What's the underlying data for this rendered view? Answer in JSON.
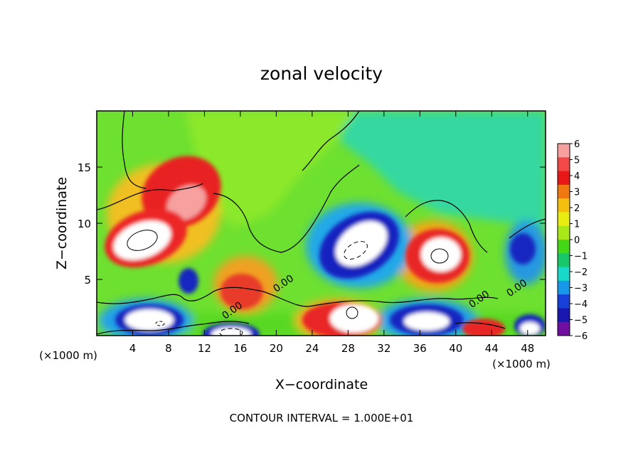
{
  "chart_data": {
    "type": "heatmap",
    "title": "zonal velocity",
    "xlabel": "X−coordinate",
    "ylabel": "Z−coordinate",
    "x_unit_label": "(×1000 m)",
    "y_unit_label": "(×1000 m)",
    "footer": "CONTOUR INTERVAL = 1.000E+01",
    "xlim": [
      0,
      50
    ],
    "ylim": [
      0,
      20
    ],
    "x_ticks": [
      4,
      8,
      12,
      16,
      20,
      24,
      28,
      32,
      36,
      40,
      44,
      48
    ],
    "y_ticks": [
      5,
      10,
      15
    ],
    "colorbar": {
      "ticks": [
        "6",
        "5",
        "4",
        "3",
        "2",
        "1",
        "0",
        "−1",
        "−2",
        "−3",
        "−4",
        "−5",
        "−6"
      ],
      "colors": [
        "#f7a0a0",
        "#f24848",
        "#e81818",
        "#f07810",
        "#f4c010",
        "#e8ec10",
        "#a8e818",
        "#44d818",
        "#18c868",
        "#18d8c8",
        "#1898e8",
        "#1840d8",
        "#1818b0",
        "#7010a0"
      ]
    },
    "contour_labels": [
      {
        "text": "0.00",
        "x": 21.0,
        "z": 4.4
      },
      {
        "text": "0.00",
        "x": 15.3,
        "z": 2.0
      },
      {
        "text": "0.00",
        "x": 42.8,
        "z": 3.0
      },
      {
        "text": "0.00",
        "x": 47.0,
        "z": 4.0
      }
    ],
    "features": [
      {
        "name": "upper-left-positive-jet",
        "x": 9.5,
        "z": 12.8,
        "sign": "positive",
        "peak": 6
      },
      {
        "name": "left-positive-core",
        "x": 5.2,
        "z": 8.3,
        "sign": "positive",
        "peak": 6
      },
      {
        "name": "bottom-left-negative",
        "x": 6.5,
        "z": 1.5,
        "sign": "negative",
        "peak": -6
      },
      {
        "name": "small-negative-blob",
        "x": 10.0,
        "z": 5.3,
        "sign": "negative",
        "peak": -5
      },
      {
        "name": "bottom-negative-16",
        "x": 16.0,
        "z": 0.5,
        "sign": "negative",
        "peak": -6
      },
      {
        "name": "low-level-positive-19",
        "x": 18.5,
        "z": 4.0,
        "sign": "positive",
        "peak": 4
      },
      {
        "name": "central-negative-core",
        "x": 29.5,
        "z": 8.3,
        "sign": "negative",
        "peak": -6
      },
      {
        "name": "bottom-positive-28",
        "x": 28.5,
        "z": 1.5,
        "sign": "positive",
        "peak": 6
      },
      {
        "name": "right-positive-core",
        "x": 38.0,
        "z": 7.5,
        "sign": "positive",
        "peak": 6
      },
      {
        "name": "bottom-negative-37",
        "x": 37.0,
        "z": 1.5,
        "sign": "negative",
        "peak": -6
      },
      {
        "name": "far-right-negative",
        "x": 47.5,
        "z": 7.5,
        "sign": "negative",
        "peak": -5
      },
      {
        "name": "bottom-positive-43",
        "x": 43.0,
        "z": 0.8,
        "sign": "positive",
        "peak": 5
      },
      {
        "name": "bottom-negative-48",
        "x": 48.0,
        "z": 1.0,
        "sign": "negative",
        "peak": -6
      }
    ]
  }
}
